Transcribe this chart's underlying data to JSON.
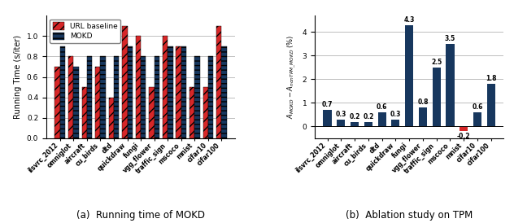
{
  "categories": [
    "ilsvrc_2012",
    "omniglot",
    "aircraft",
    "cu_birds",
    "dtd",
    "quickdraw",
    "fungi",
    "vgg_flower",
    "traffic_sign",
    "mscoco",
    "mnist",
    "cifar10",
    "cifar100"
  ],
  "url_baseline": [
    0.7,
    0.8,
    0.5,
    0.7,
    0.4,
    1.1,
    1.0,
    0.5,
    1.0,
    0.9,
    0.5,
    0.5,
    1.1
  ],
  "mokd": [
    0.9,
    0.7,
    0.8,
    0.8,
    0.8,
    0.9,
    0.8,
    0.8,
    0.9,
    0.9,
    0.8,
    0.8,
    0.9
  ],
  "ablation_values": [
    0.7,
    0.3,
    0.2,
    0.2,
    0.6,
    0.3,
    4.3,
    0.8,
    2.5,
    3.5,
    -0.2,
    0.6,
    1.8
  ],
  "url_color": "#d62728",
  "mokd_color": "#17375e",
  "ablation_pos_color": "#17375e",
  "ablation_neg_color": "#d62728",
  "ylabel_left": "Running Time (s/iter)",
  "ylabel_right": "$A_{MOKD} - A_{nonTPM\\_MOKD}$ (%)",
  "caption_left": "(a)  Running time of MOKD",
  "caption_right": "(b)  Ablation study on TPM",
  "ylim_left": [
    0,
    1.2
  ],
  "ylim_right": [
    -0.5,
    4.7
  ],
  "yticks_left": [
    0.0,
    0.2,
    0.4,
    0.6,
    0.8,
    1.0
  ],
  "yticks_right": [
    0,
    1,
    2,
    3,
    4
  ],
  "bar_width": 0.38
}
